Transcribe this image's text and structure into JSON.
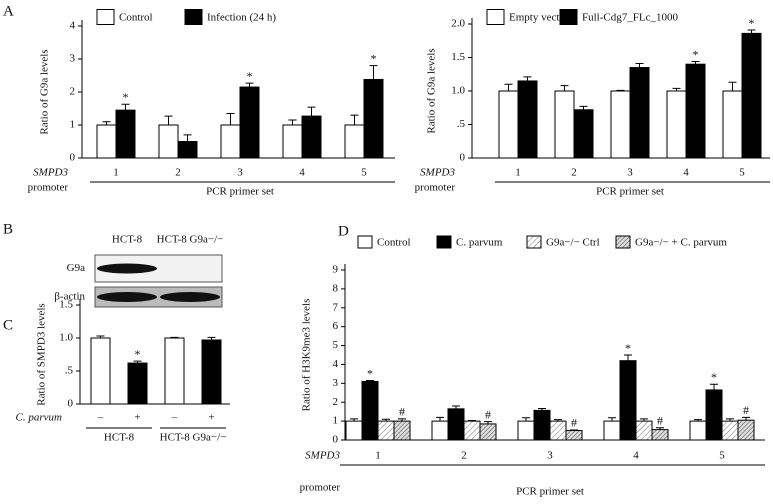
{
  "chart_data": [
    {
      "type": "bar",
      "panel": "A",
      "ylabel": "Ratio of G9a levels",
      "categories": [
        "1",
        "2",
        "3",
        "4",
        "5"
      ],
      "row_label": "SMPD3",
      "row_label2": "promoter",
      "xlabel": "PCR primer set",
      "ylim": [
        0,
        4
      ],
      "yticks": [
        0,
        1,
        2,
        3,
        4
      ],
      "series": [
        {
          "name": "Control",
          "color": "#ffffff",
          "values": [
            1.0,
            1.0,
            1.0,
            1.0,
            1.0
          ],
          "errors": [
            0.1,
            0.27,
            0.35,
            0.15,
            0.3
          ],
          "labels": [
            null,
            null,
            null,
            null,
            null
          ]
        },
        {
          "name": "Infection (24 h)",
          "color": "#000000",
          "values": [
            1.45,
            0.5,
            2.15,
            1.27,
            2.38
          ],
          "errors": [
            0.18,
            0.2,
            0.12,
            0.27,
            0.42
          ],
          "labels": [
            "*",
            null,
            "*",
            null,
            "*"
          ]
        }
      ]
    },
    {
      "type": "bar",
      "ylabel": "Ratio of G9a levels",
      "categories": [
        "1",
        "2",
        "3",
        "4",
        "5"
      ],
      "row_label": "SMPD3",
      "row_label2": "promoter",
      "xlabel": "PCR primer set",
      "ylim": [
        0,
        2
      ],
      "yticks": [
        0,
        {
          "value": 0.5,
          "label": ".5"
        },
        {
          "value": 1,
          "label": "1.0"
        },
        {
          "value": 1.5,
          "label": "1.5"
        },
        {
          "value": 2,
          "label": "2.0"
        }
      ],
      "series": [
        {
          "name": "Empty vector",
          "color": "#ffffff",
          "values": [
            1.0,
            1.0,
            1.0,
            1.0,
            1.0
          ],
          "errors": [
            0.1,
            0.08,
            0.01,
            0.04,
            0.13
          ],
          "labels": [
            null,
            null,
            null,
            null,
            null
          ]
        },
        {
          "name": "Full-Cdg7_FLc_1000",
          "color": "#000000",
          "values": [
            1.15,
            0.72,
            1.35,
            1.4,
            1.86
          ],
          "errors": [
            0.06,
            0.05,
            0.06,
            0.04,
            0.05
          ],
          "labels": [
            null,
            null,
            null,
            "*",
            "*"
          ]
        }
      ]
    },
    {
      "type": "blot",
      "panel": "B",
      "columns": [
        "HCT-8",
        "HCT-8 G9a−/−"
      ],
      "rows": [
        "G9a",
        "β-actin"
      ]
    },
    {
      "type": "bar",
      "panel": "C",
      "ylabel": "Ratio of SMPD3 levels",
      "categories": [
        "–",
        "+",
        "–",
        "+"
      ],
      "row_label": "C. parvum",
      "groups": [
        "HCT-8",
        "HCT-8 G9a−/−"
      ],
      "ylim": [
        0,
        1.5
      ],
      "yticks": [
        0,
        {
          "value": 0.5,
          "label": ".5"
        },
        {
          "value": 1,
          "label": "1.0"
        },
        {
          "value": 1.5,
          "label": "1.5"
        }
      ],
      "values": [
        1.0,
        0.62,
        1.0,
        0.97
      ],
      "errors": [
        0.03,
        0.03,
        0.01,
        0.04
      ],
      "colors": [
        "#ffffff",
        "#000000",
        "#ffffff",
        "#000000"
      ],
      "labels": [
        null,
        "*",
        null,
        null
      ]
    },
    {
      "type": "bar",
      "panel": "D",
      "ylabel": "Ratio of H3K9me3 levels",
      "categories": [
        "1",
        "2",
        "3",
        "4",
        "5"
      ],
      "row_label": "SMPD3",
      "row_label2": "promoter",
      "xlabel": "PCR primer set",
      "ylim": [
        0,
        9
      ],
      "yticks": [
        0,
        1,
        2,
        3,
        4,
        5,
        6,
        7,
        8,
        9
      ],
      "series": [
        {
          "name": "Control",
          "color": "#ffffff",
          "values": [
            1.0,
            1.0,
            1.0,
            1.0,
            1.0
          ],
          "errors": [
            0.12,
            0.2,
            0.18,
            0.18,
            0.08
          ],
          "labels": [
            null,
            null,
            null,
            null,
            null
          ]
        },
        {
          "name": "C. parvum",
          "color": "#000000",
          "values": [
            3.1,
            1.65,
            1.57,
            4.2,
            2.65
          ],
          "errors": [
            0.05,
            0.15,
            0.1,
            0.3,
            0.3
          ],
          "labels": [
            "*",
            null,
            null,
            "*",
            "*"
          ]
        },
        {
          "name": "G9a−/− Ctrl",
          "color": "#ffffff",
          "hatch": "light",
          "values": [
            1.0,
            1.0,
            1.0,
            1.0,
            1.0
          ],
          "errors": [
            0.1,
            0.03,
            0.08,
            0.12,
            0.12
          ],
          "labels": [
            null,
            null,
            null,
            null,
            null
          ]
        },
        {
          "name": "G9a−/− + C. parvum",
          "color": "#ffffff",
          "hatch": "dense",
          "values": [
            1.0,
            0.85,
            0.5,
            0.55,
            1.05
          ],
          "errors": [
            0.12,
            0.12,
            0.03,
            0.1,
            0.15
          ],
          "labels": [
            "#",
            "#",
            "#",
            "#",
            "#"
          ]
        }
      ]
    }
  ]
}
